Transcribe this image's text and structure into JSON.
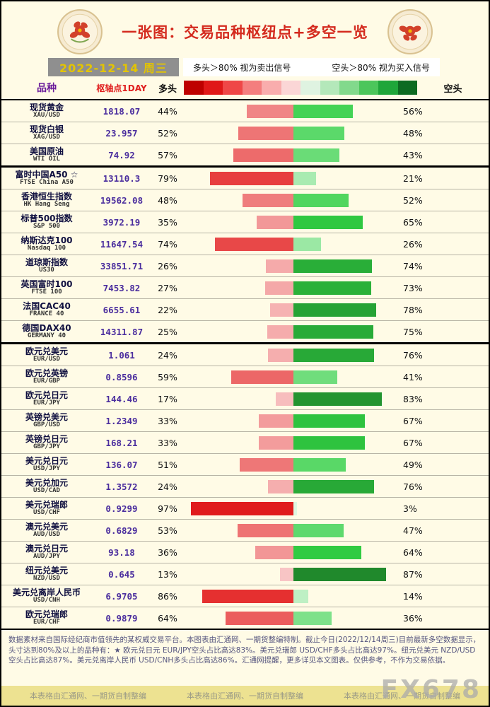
{
  "header": {
    "title": "一张图：交易品种枢纽点+多空一览",
    "date": "2022-12-14 周三",
    "legend_long": "多头＞80% 视为卖出信号",
    "legend_short": "空头＞80% 视为买入信号"
  },
  "columns": {
    "instrument": "品种",
    "pivot": "枢轴点1DAY",
    "long": "多头",
    "short": "空头"
  },
  "scale_colors": [
    "#BE0000",
    "#E01818",
    "#EF4747",
    "#F47E7E",
    "#F9ADAD",
    "#FBD6D6",
    "#DFF3E1",
    "#B4E8BA",
    "#82D98C",
    "#4CC65B",
    "#1FA63A",
    "#0D6B22"
  ],
  "chart_data": {
    "type": "bar",
    "orientation": "diverging-horizontal",
    "series": [
      "多头",
      "空头"
    ],
    "unit": "%",
    "title": "一张图：交易品种枢纽点+多空一览",
    "groups": [
      {
        "name": "commodities",
        "rows": [
          {
            "name": "现货黄金",
            "code": "XAU/USD",
            "pivot": "1818.07",
            "long": 44,
            "short": 56
          },
          {
            "name": "现货白银",
            "code": "XAG/USD",
            "pivot": "23.957",
            "long": 52,
            "short": 48
          },
          {
            "name": "美国原油",
            "code": "WTI OIL",
            "pivot": "74.92",
            "long": 57,
            "short": 43
          }
        ]
      },
      {
        "name": "indices",
        "rows": [
          {
            "name": "富时中国A50 ☆",
            "code": "FTSE China A50",
            "pivot": "13110.3",
            "long": 79,
            "short": 21
          },
          {
            "name": "香港恒生指数",
            "code": "HK Hang Seng",
            "pivot": "19562.08",
            "long": 48,
            "short": 52
          },
          {
            "name": "标普500指数",
            "code": "S&P 500",
            "pivot": "3972.19",
            "long": 35,
            "short": 65
          },
          {
            "name": "纳斯达克100",
            "code": "Nasdaq 100",
            "pivot": "11647.54",
            "long": 74,
            "short": 26
          },
          {
            "name": "道琼斯指数",
            "code": "US30",
            "pivot": "33851.71",
            "long": 26,
            "short": 74
          },
          {
            "name": "英国富时100",
            "code": "FTSE 100",
            "pivot": "7453.82",
            "long": 27,
            "short": 73
          },
          {
            "name": "法国CAC40",
            "code": "FRANCE 40",
            "pivot": "6655.61",
            "long": 22,
            "short": 78
          },
          {
            "name": "德国DAX40",
            "code": "GERMANY 40",
            "pivot": "14311.87",
            "long": 25,
            "short": 75
          }
        ]
      },
      {
        "name": "forex",
        "rows": [
          {
            "name": "欧元兑美元",
            "code": "EUR/USD",
            "pivot": "1.061",
            "long": 24,
            "short": 76
          },
          {
            "name": "欧元兑英镑",
            "code": "EUR/GBP",
            "pivot": "0.8596",
            "long": 59,
            "short": 41
          },
          {
            "name": "欧元兑日元",
            "code": "EUR/JPY",
            "pivot": "144.46",
            "long": 17,
            "short": 83
          },
          {
            "name": "英镑兑美元",
            "code": "GBP/USD",
            "pivot": "1.2349",
            "long": 33,
            "short": 67
          },
          {
            "name": "英镑兑日元",
            "code": "GBP/JPY",
            "pivot": "168.21",
            "long": 33,
            "short": 67
          },
          {
            "name": "美元兑日元",
            "code": "USD/JPY",
            "pivot": "136.07",
            "long": 51,
            "short": 49
          },
          {
            "name": "美元兑加元",
            "code": "USD/CAD",
            "pivot": "1.3572",
            "long": 24,
            "short": 76
          },
          {
            "name": "美元兑瑞郎",
            "code": "USD/CHF",
            "pivot": "0.9299",
            "long": 97,
            "short": 3
          },
          {
            "name": "澳元兑美元",
            "code": "AUD/USD",
            "pivot": "0.6829",
            "long": 53,
            "short": 47
          },
          {
            "name": "澳元兑日元",
            "code": "AUD/JPY",
            "pivot": "93.18",
            "long": 36,
            "short": 64
          },
          {
            "name": "纽元兑美元",
            "code": "NZD/USD",
            "pivot": "0.645",
            "long": 13,
            "short": 87
          },
          {
            "name": "美元兑离岸人民币",
            "code": "USD/CNH",
            "pivot": "6.9705",
            "long": 86,
            "short": 14
          },
          {
            "name": "欧元兑瑞郎",
            "code": "EUR/CHF",
            "pivot": "0.9879",
            "long": 64,
            "short": 36
          }
        ]
      }
    ]
  },
  "footer": {
    "summary": "数据素材来自国际经纪商市值领先的某权威交易平台。本图表由汇通网、一期货整编特制。截止今日(2022/12/14周三)目前最新多空数据显示，头寸达到80%及以上的品种有：★ 欧元兑日元 EUR/JPY空头占比高达83%。美元兑瑞郎 USD/CHF多头占比高达97%。纽元兑美元 NZD/USD空头占比高达87%。美元兑离岸人民币 USD/CNH多头占比高达86%。汇通网提醒，更多详见本文图表。仅供参考，不作为交易依据。",
    "credits": [
      "本表格由汇通网、一期货自制整编",
      "本表格由汇通网、一期货自制整编",
      "本表格由汇通网、一期货自制整编"
    ],
    "watermark": "FX678"
  }
}
